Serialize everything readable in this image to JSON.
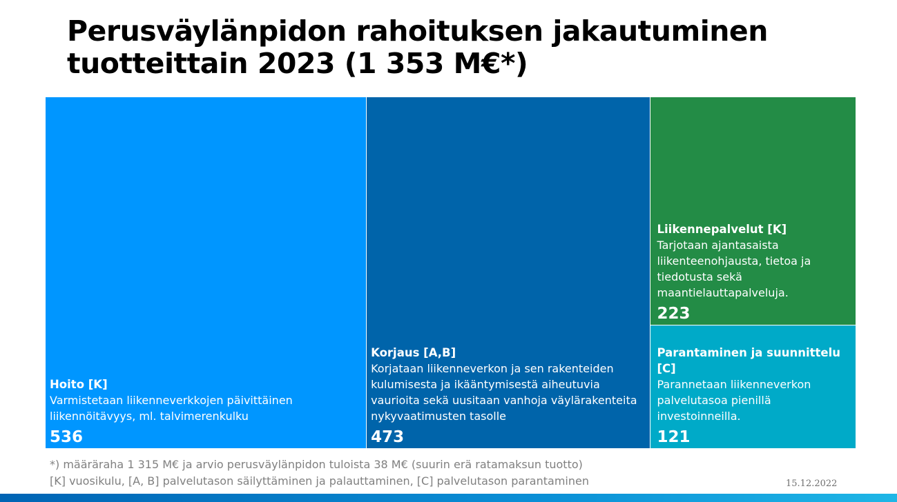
{
  "title_line1": "Perusväylänpidon rahoituksen jakautuminen",
  "title_line2": "tuotteittain 2023 (1 353 M€*)",
  "chart_data": {
    "type": "treemap",
    "total": 1353,
    "items": [
      {
        "name": "Hoito [K]",
        "description": "Varmistetaan liikenneverkkojen päivittäinen liikennöitävyys, ml. talvimerenkulku",
        "value": 536,
        "value_label": "536",
        "color": "#0096ff"
      },
      {
        "name": "Korjaus [A,B]",
        "description": "Korjataan liikenneverkon ja sen rakenteiden kulumisesta ja ikääntymisestä aiheutuvia vaurioita sekä uusitaan vanhoja väylärakenteita nykyvaatimusten tasolle",
        "value": 473,
        "value_label": "473",
        "color": "#0064aa"
      },
      {
        "name": "Liikennepalvelut [K]",
        "description": "Tarjotaan ajantasaista liikenteenohjausta, tietoa ja tiedotusta sekä maantielauttapalveluja.",
        "value": 223,
        "value_label": "223",
        "color": "#238c46"
      },
      {
        "name": "Parantaminen ja suunnittelu [C]",
        "description": "Parannetaan liikenneverkon palvelutasoa pienillä investoinneilla.",
        "value": 121,
        "value_label": "121",
        "color": "#00aac8"
      }
    ]
  },
  "footnote_1": "*) määräraha 1 315 M€ ja arvio perusväylänpidon tuloista 38 M€ (suurin erä ratamaksun tuotto)",
  "footnote_2": "[K] vuosikulu, [A, B] palvelutason säilyttäminen ja palauttaminen, [C] palvelutason parantaminen",
  "date": "15.12.2022",
  "bar_color": "#0a8fd6"
}
